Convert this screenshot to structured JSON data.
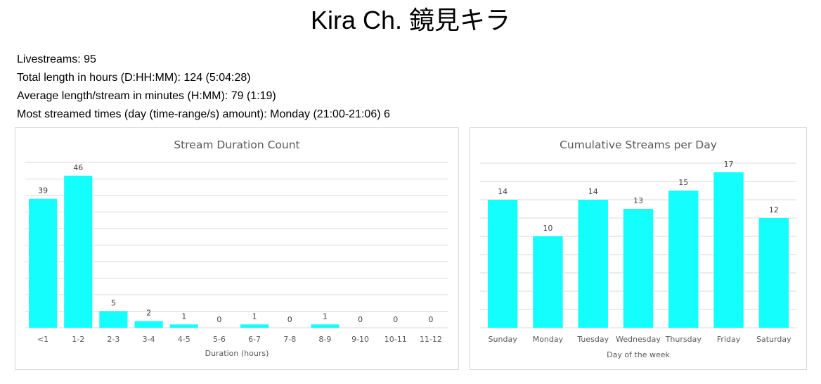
{
  "page": {
    "title": "Kira Ch. 鏡見キラ"
  },
  "stats": [
    "Livestreams: 95",
    "Total length in hours (D:HH:MM): 124 (5:04:28)",
    "Average length/stream in minutes (H:MM): 79 (1:19)",
    "Most streamed times (day (time-range/s) amount): Monday (21:00-21:06) 6"
  ],
  "colors": {
    "bar": "#14FEFE",
    "grid": "#D9D9D9",
    "text": "#595959"
  },
  "chart_data": [
    {
      "type": "bar",
      "title": "Stream Duration Count",
      "xlabel": "Duration (hours)",
      "ylabel": "",
      "categories": [
        "<1",
        "1-2",
        "2-3",
        "3-4",
        "4-5",
        "5-6",
        "6-7",
        "7-8",
        "8-9",
        "9-10",
        "10-11",
        "11-12"
      ],
      "values": [
        39,
        46,
        5,
        2,
        1,
        0,
        1,
        0,
        1,
        0,
        0,
        0
      ],
      "ylim": [
        0,
        50
      ],
      "ytick_step": 5,
      "grid": true,
      "legend": "none",
      "data_labels": true
    },
    {
      "type": "bar",
      "title": "Cumulative Streams per Day",
      "xlabel": "Day of the week",
      "ylabel": "",
      "categories": [
        "Sunday",
        "Monday",
        "Tuesday",
        "Wednesday",
        "Thursday",
        "Friday",
        "Saturday"
      ],
      "values": [
        14,
        10,
        14,
        13,
        15,
        17,
        12
      ],
      "ylim": [
        0,
        18
      ],
      "ytick_step": 2,
      "grid": true,
      "legend": "none",
      "data_labels": true
    }
  ]
}
